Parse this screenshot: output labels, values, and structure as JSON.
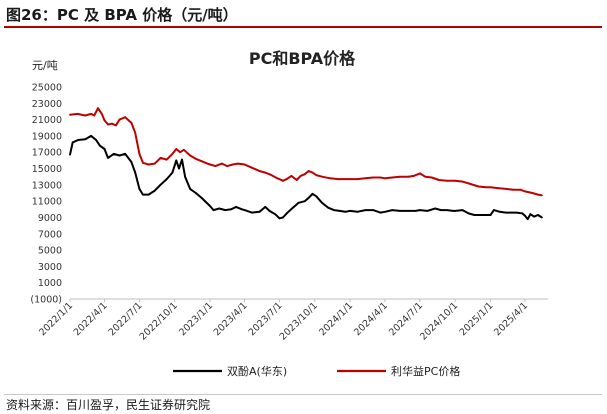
{
  "figure_title": "图26：PC 及 BPA 价格（元/吨）",
  "source_note": "资料来源：百川盈孚，民生证券研究院",
  "colors": {
    "bpa": "#000000",
    "pc": "#c00000",
    "title_rule": "#b40000",
    "grid": "#d9d9d9"
  },
  "chart_data": {
    "type": "line",
    "title": "PC和BPA价格",
    "unit_label": "元/吨",
    "ylim": [
      -1000,
      25000
    ],
    "yticks": [
      -1000,
      1000,
      3000,
      5000,
      7000,
      9000,
      11000,
      13000,
      15000,
      17000,
      19000,
      21000,
      23000,
      25000
    ],
    "ytick_labels": [
      "(1000)",
      "1000",
      "3000",
      "5000",
      "7000",
      "9000",
      "11000",
      "13000",
      "15000",
      "17000",
      "19000",
      "21000",
      "23000",
      "25000"
    ],
    "xticks": [
      "2022/1/1",
      "2022/4/1",
      "2022/7/1",
      "2022/10/1",
      "2023/1/1",
      "2023/4/1",
      "2023/7/1",
      "2023/10/1",
      "2024/1/1",
      "2024/4/1",
      "2024/7/1",
      "2024/10/1",
      "2025/1/1",
      "2025/4/1"
    ],
    "legend_position": "bottom",
    "grid": false,
    "series": [
      {
        "name": "双酚A(华东)",
        "color": "#000000",
        "points": [
          [
            "2022/1/1",
            16700
          ],
          [
            "2022/1/8",
            18200
          ],
          [
            "2022/1/22",
            18500
          ],
          [
            "2022/2/10",
            18600
          ],
          [
            "2022/2/25",
            19000
          ],
          [
            "2022/3/10",
            18500
          ],
          [
            "2022/3/20",
            17800
          ],
          [
            "2022/4/1",
            17400
          ],
          [
            "2022/4/10",
            16300
          ],
          [
            "2022/4/25",
            16800
          ],
          [
            "2022/5/10",
            16600
          ],
          [
            "2022/5/25",
            16800
          ],
          [
            "2022/6/10",
            15800
          ],
          [
            "2022/6/20",
            14500
          ],
          [
            "2022/7/1",
            12500
          ],
          [
            "2022/7/10",
            11800
          ],
          [
            "2022/7/25",
            11800
          ],
          [
            "2022/8/10",
            12300
          ],
          [
            "2022/8/25",
            13000
          ],
          [
            "2022/9/10",
            13700
          ],
          [
            "2022/9/25",
            14500
          ],
          [
            "2022/10/5",
            16000
          ],
          [
            "2022/10/12",
            15000
          ],
          [
            "2022/10/20",
            16100
          ],
          [
            "2022/10/28",
            14000
          ],
          [
            "2022/11/10",
            12500
          ],
          [
            "2022/11/25",
            12000
          ],
          [
            "2022/12/10",
            11400
          ],
          [
            "2023/1/1",
            10400
          ],
          [
            "2023/1/10",
            9900
          ],
          [
            "2023/1/25",
            10100
          ],
          [
            "2023/2/10",
            9900
          ],
          [
            "2023/2/25",
            10000
          ],
          [
            "2023/3/10",
            10300
          ],
          [
            "2023/3/25",
            10000
          ],
          [
            "2023/4/1",
            9900
          ],
          [
            "2023/4/20",
            9600
          ],
          [
            "2023/5/10",
            9700
          ],
          [
            "2023/5/25",
            10300
          ],
          [
            "2023/6/5",
            9800
          ],
          [
            "2023/6/20",
            9400
          ],
          [
            "2023/7/1",
            8900
          ],
          [
            "2023/7/10",
            9000
          ],
          [
            "2023/7/20",
            9500
          ],
          [
            "2023/8/5",
            10200
          ],
          [
            "2023/8/20",
            10800
          ],
          [
            "2023/9/5",
            11000
          ],
          [
            "2023/9/15",
            11400
          ],
          [
            "2023/9/25",
            11900
          ],
          [
            "2023/10/5",
            11600
          ],
          [
            "2023/10/20",
            10800
          ],
          [
            "2023/11/5",
            10200
          ],
          [
            "2023/11/20",
            9900
          ],
          [
            "2023/12/5",
            9800
          ],
          [
            "2023/12/20",
            9700
          ],
          [
            "2024/1/1",
            9800
          ],
          [
            "2024/1/20",
            9700
          ],
          [
            "2024/2/10",
            9900
          ],
          [
            "2024/3/1",
            9900
          ],
          [
            "2024/3/20",
            9600
          ],
          [
            "2024/4/1",
            9700
          ],
          [
            "2024/4/20",
            9900
          ],
          [
            "2024/5/10",
            9800
          ],
          [
            "2024/6/1",
            9800
          ],
          [
            "2024/6/20",
            9800
          ],
          [
            "2024/7/1",
            9900
          ],
          [
            "2024/7/20",
            9800
          ],
          [
            "2024/8/10",
            10100
          ],
          [
            "2024/8/25",
            9900
          ],
          [
            "2024/9/10",
            9900
          ],
          [
            "2024/9/25",
            9800
          ],
          [
            "2024/10/1",
            9800
          ],
          [
            "2024/10/20",
            9900
          ],
          [
            "2024/11/5",
            9500
          ],
          [
            "2024/11/20",
            9300
          ],
          [
            "2024/12/10",
            9300
          ],
          [
            "2024/12/25",
            9300
          ],
          [
            "2025/1/1",
            9300
          ],
          [
            "2025/1/10",
            9900
          ],
          [
            "2025/1/25",
            9700
          ],
          [
            "2025/2/10",
            9600
          ],
          [
            "2025/2/25",
            9600
          ],
          [
            "2025/3/10",
            9600
          ],
          [
            "2025/3/25",
            9500
          ],
          [
            "2025/4/1",
            9200
          ],
          [
            "2025/4/8",
            8800
          ],
          [
            "2025/4/15",
            9400
          ],
          [
            "2025/4/25",
            9100
          ],
          [
            "2025/5/5",
            9300
          ],
          [
            "2025/5/15",
            9000
          ]
        ]
      },
      {
        "name": "利华益PC价格",
        "color": "#c00000",
        "points": [
          [
            "2022/1/1",
            21600
          ],
          [
            "2022/1/20",
            21700
          ],
          [
            "2022/2/10",
            21500
          ],
          [
            "2022/2/25",
            21700
          ],
          [
            "2022/3/5",
            21500
          ],
          [
            "2022/3/15",
            22400
          ],
          [
            "2022/3/25",
            21700
          ],
          [
            "2022/4/1",
            20900
          ],
          [
            "2022/4/10",
            20400
          ],
          [
            "2022/4/20",
            20500
          ],
          [
            "2022/5/1",
            20300
          ],
          [
            "2022/5/10",
            21000
          ],
          [
            "2022/5/25",
            21300
          ],
          [
            "2022/6/10",
            20600
          ],
          [
            "2022/6/20",
            19400
          ],
          [
            "2022/7/1",
            16800
          ],
          [
            "2022/7/10",
            15700
          ],
          [
            "2022/7/25",
            15500
          ],
          [
            "2022/8/10",
            15600
          ],
          [
            "2022/8/25",
            16300
          ],
          [
            "2022/9/10",
            16100
          ],
          [
            "2022/9/25",
            16800
          ],
          [
            "2022/10/5",
            17400
          ],
          [
            "2022/10/15",
            17000
          ],
          [
            "2022/10/25",
            17300
          ],
          [
            "2022/11/10",
            16600
          ],
          [
            "2022/11/25",
            16200
          ],
          [
            "2022/12/10",
            15900
          ],
          [
            "2022/12/25",
            15600
          ],
          [
            "2023/1/1",
            15500
          ],
          [
            "2023/1/15",
            15300
          ],
          [
            "2023/2/1",
            15600
          ],
          [
            "2023/2/15",
            15300
          ],
          [
            "2023/3/1",
            15500
          ],
          [
            "2023/3/15",
            15600
          ],
          [
            "2023/4/1",
            15500
          ],
          [
            "2023/4/20",
            15100
          ],
          [
            "2023/5/10",
            14700
          ],
          [
            "2023/5/25",
            14500
          ],
          [
            "2023/6/10",
            14200
          ],
          [
            "2023/6/25",
            13800
          ],
          [
            "2023/7/1",
            13700
          ],
          [
            "2023/7/10",
            13500
          ],
          [
            "2023/7/20",
            13700
          ],
          [
            "2023/8/1",
            14100
          ],
          [
            "2023/8/15",
            13600
          ],
          [
            "2023/8/25",
            14100
          ],
          [
            "2023/9/5",
            14300
          ],
          [
            "2023/9/15",
            14700
          ],
          [
            "2023/9/25",
            14500
          ],
          [
            "2023/10/5",
            14200
          ],
          [
            "2023/10/20",
            14000
          ],
          [
            "2023/11/10",
            13800
          ],
          [
            "2023/12/1",
            13700
          ],
          [
            "2023/12/20",
            13700
          ],
          [
            "2024/1/1",
            13700
          ],
          [
            "2024/1/20",
            13700
          ],
          [
            "2024/2/10",
            13800
          ],
          [
            "2024/3/1",
            13900
          ],
          [
            "2024/3/20",
            13900
          ],
          [
            "2024/4/1",
            13800
          ],
          [
            "2024/4/20",
            13900
          ],
          [
            "2024/5/10",
            14000
          ],
          [
            "2024/6/1",
            14000
          ],
          [
            "2024/6/15",
            14100
          ],
          [
            "2024/7/1",
            14400
          ],
          [
            "2024/7/15",
            14000
          ],
          [
            "2024/8/1",
            13900
          ],
          [
            "2024/8/20",
            13600
          ],
          [
            "2024/9/10",
            13500
          ],
          [
            "2024/10/1",
            13500
          ],
          [
            "2024/10/20",
            13400
          ],
          [
            "2024/11/10",
            13100
          ],
          [
            "2024/12/1",
            12800
          ],
          [
            "2024/12/20",
            12700
          ],
          [
            "2025/1/1",
            12700
          ],
          [
            "2025/1/20",
            12600
          ],
          [
            "2025/2/10",
            12500
          ],
          [
            "2025/3/1",
            12400
          ],
          [
            "2025/3/20",
            12400
          ],
          [
            "2025/4/1",
            12200
          ],
          [
            "2025/4/20",
            12000
          ],
          [
            "2025/5/5",
            11800
          ],
          [
            "2025/5/15",
            11700
          ]
        ]
      }
    ]
  }
}
